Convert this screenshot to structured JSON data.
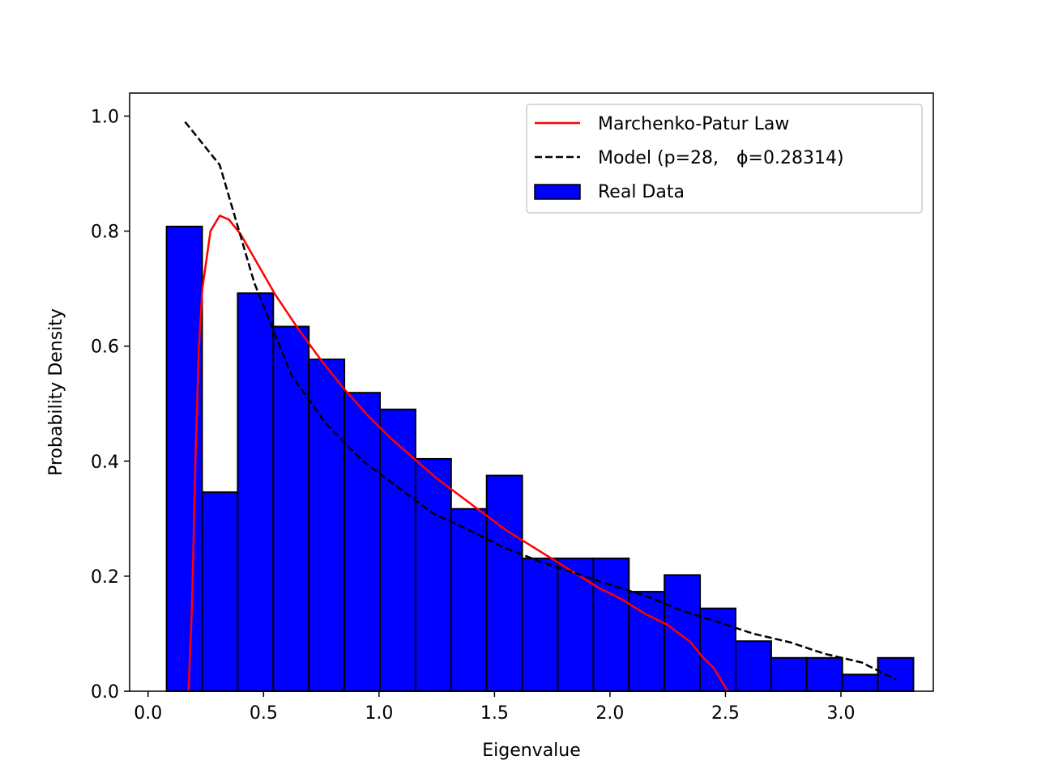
{
  "chart_data": {
    "type": "bar",
    "title": "",
    "xlabel": "Eigenvalue",
    "ylabel": "Probability Density",
    "xlim": [
      -0.08,
      3.4
    ],
    "ylim": [
      0.0,
      1.04
    ],
    "x_ticks": [
      0.0,
      0.5,
      1.0,
      1.5,
      2.0,
      2.5,
      3.0
    ],
    "x_tick_labels": [
      "0.0",
      "0.5",
      "1.0",
      "1.5",
      "2.0",
      "2.5",
      "3.0"
    ],
    "y_ticks": [
      0.0,
      0.2,
      0.4,
      0.6,
      0.8,
      1.0
    ],
    "y_tick_labels": [
      "0.0",
      "0.2",
      "0.4",
      "0.6",
      "0.8",
      "1.0"
    ],
    "grid": false,
    "legend_position": "top-right",
    "legend": [
      {
        "label": "Marchenko-Patur Law",
        "style": "solid-line",
        "color": "#ff0000"
      },
      {
        "label": "Model (p=28, ϕ=0.28314)",
        "style": "dashed-line",
        "color": "#000000"
      },
      {
        "label": "Real Data",
        "style": "bar",
        "color": "#0000ff"
      }
    ],
    "histogram": {
      "name": "Real Data",
      "color": "#0000ff",
      "edge_color": "#000000",
      "bin_edges": [
        0.08,
        0.234,
        0.388,
        0.542,
        0.696,
        0.85,
        1.004,
        1.158,
        1.312,
        1.466,
        1.62,
        1.774,
        1.928,
        2.082,
        2.236,
        2.39,
        2.544,
        2.698,
        2.852,
        3.006,
        3.16,
        3.314
      ],
      "values": [
        0.808,
        0.346,
        0.692,
        0.634,
        0.577,
        0.519,
        0.49,
        0.404,
        0.317,
        0.375,
        0.231,
        0.231,
        0.231,
        0.173,
        0.202,
        0.144,
        0.087,
        0.058,
        0.058,
        0.029,
        0.058
      ]
    },
    "series": [
      {
        "name": "Marchenko-Patur Law",
        "type": "line",
        "color": "#ff0000",
        "dash": "solid",
        "x": [
          0.175,
          0.19,
          0.205,
          0.22,
          0.235,
          0.27,
          0.31,
          0.35,
          0.4,
          0.45,
          0.55,
          0.65,
          0.75,
          0.85,
          0.95,
          1.05,
          1.15,
          1.25,
          1.35,
          1.45,
          1.55,
          1.65,
          1.75,
          1.85,
          1.95,
          2.05,
          2.15,
          2.25,
          2.3,
          2.35,
          2.4,
          2.45,
          2.48,
          2.51
        ],
        "y": [
          0.0,
          0.15,
          0.4,
          0.6,
          0.7,
          0.8,
          0.827,
          0.82,
          0.795,
          0.76,
          0.69,
          0.63,
          0.575,
          0.525,
          0.48,
          0.44,
          0.405,
          0.37,
          0.34,
          0.31,
          0.28,
          0.255,
          0.23,
          0.205,
          0.18,
          0.16,
          0.135,
          0.115,
          0.1,
          0.085,
          0.06,
          0.04,
          0.02,
          0.0
        ]
      },
      {
        "name": "Model (p=28, ϕ=0.28314)",
        "type": "line",
        "color": "#000000",
        "dash": "dashed",
        "x": [
          0.16,
          0.31,
          0.46,
          0.62,
          0.77,
          0.93,
          1.08,
          1.23,
          1.39,
          1.54,
          1.7,
          1.85,
          2.0,
          2.16,
          2.31,
          2.47,
          2.62,
          2.78,
          2.93,
          3.09,
          3.24
        ],
        "y": [
          0.99,
          0.915,
          0.71,
          0.55,
          0.465,
          0.4,
          0.355,
          0.31,
          0.28,
          0.25,
          0.225,
          0.205,
          0.185,
          0.165,
          0.14,
          0.12,
          0.1,
          0.085,
          0.065,
          0.05,
          0.02
        ]
      }
    ]
  }
}
